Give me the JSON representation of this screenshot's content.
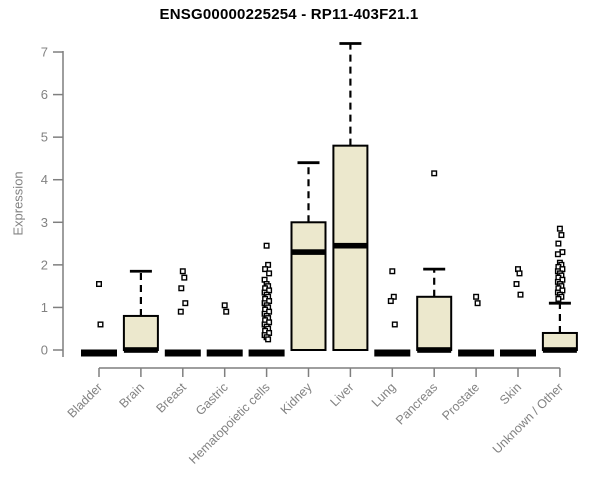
{
  "page": {
    "background": "#ffffff"
  },
  "chart_data": {
    "type": "boxplot",
    "title": "ENSG00000225254 - RP11-403F21.1",
    "ylabel": "Expression",
    "xlabel": "",
    "ylim": [
      0,
      7
    ],
    "yticks": [
      0,
      1,
      2,
      3,
      4,
      5,
      6,
      7
    ],
    "grid": false,
    "legend": "none",
    "box_fill": "#ece8cd",
    "box_border": "#000000",
    "median_color": "#000000",
    "axis_color": "#7f7f7f",
    "label_color": "#828282",
    "title_color": "#000000",
    "categories": [
      "Bladder",
      "Brain",
      "Breast",
      "Gastric",
      "Hematopoietic cells",
      "Kidney",
      "Liver",
      "Lung",
      "Pancreas",
      "Prostate",
      "Skin",
      "Unknown / Other"
    ],
    "series": [
      {
        "category": "Bladder",
        "q1": 0,
        "median": 0,
        "q3": 0,
        "whisker_low": 0,
        "whisker_high": 0,
        "outliers": [
          1.55,
          0.6
        ]
      },
      {
        "category": "Brain",
        "q1": 0,
        "median": 0,
        "q3": 0.8,
        "whisker_low": 0,
        "whisker_high": 1.85,
        "outliers": []
      },
      {
        "category": "Breast",
        "q1": 0,
        "median": 0,
        "q3": 0,
        "whisker_low": 0,
        "whisker_high": 0,
        "outliers": [
          1.85,
          1.7,
          1.45,
          1.1,
          0.9
        ]
      },
      {
        "category": "Gastric",
        "q1": 0,
        "median": 0,
        "q3": 0,
        "whisker_low": 0,
        "whisker_high": 0,
        "outliers": [
          1.05,
          0.9
        ]
      },
      {
        "category": "Hematopoietic cells",
        "q1": 0,
        "median": 0,
        "q3": 0,
        "whisker_low": 0,
        "whisker_high": 0,
        "outliers": [
          2.45,
          2.0,
          1.9,
          1.8,
          1.65,
          1.55,
          1.5,
          1.45,
          1.4,
          1.35,
          1.3,
          1.25,
          1.2,
          1.15,
          1.1,
          1.05,
          1.0,
          0.95,
          0.9,
          0.85,
          0.8,
          0.75,
          0.7,
          0.65,
          0.6,
          0.55,
          0.5,
          0.45,
          0.4,
          0.35,
          0.3,
          0.25
        ]
      },
      {
        "category": "Kidney",
        "q1": 0,
        "median": 2.3,
        "q3": 3.0,
        "whisker_low": 0,
        "whisker_high": 4.4,
        "outliers": []
      },
      {
        "category": "Liver",
        "q1": 0,
        "median": 2.45,
        "q3": 4.8,
        "whisker_low": 0,
        "whisker_high": 7.2,
        "outliers": []
      },
      {
        "category": "Lung",
        "q1": 0,
        "median": 0,
        "q3": 0,
        "whisker_low": 0,
        "whisker_high": 0,
        "outliers": [
          1.85,
          1.25,
          1.15,
          0.6
        ]
      },
      {
        "category": "Pancreas",
        "q1": 0,
        "median": 0,
        "q3": 1.25,
        "whisker_low": 0,
        "whisker_high": 1.9,
        "outliers": [
          4.15
        ]
      },
      {
        "category": "Prostate",
        "q1": 0,
        "median": 0,
        "q3": 0,
        "whisker_low": 0,
        "whisker_high": 0,
        "outliers": [
          1.25,
          1.1
        ]
      },
      {
        "category": "Skin",
        "q1": 0,
        "median": 0,
        "q3": 0,
        "whisker_low": 0,
        "whisker_high": 0,
        "outliers": [
          1.9,
          1.8,
          1.55,
          1.3
        ]
      },
      {
        "category": "Unknown / Other",
        "q1": 0,
        "median": 0,
        "q3": 0.4,
        "whisker_low": 0,
        "whisker_high": 1.1,
        "outliers": [
          2.85,
          2.7,
          2.5,
          2.3,
          2.25,
          2.05,
          2.0,
          1.95,
          1.9,
          1.85,
          1.8,
          1.75,
          1.7,
          1.65,
          1.6,
          1.55,
          1.5,
          1.45,
          1.4,
          1.35,
          1.3,
          1.25,
          1.2
        ]
      }
    ]
  }
}
